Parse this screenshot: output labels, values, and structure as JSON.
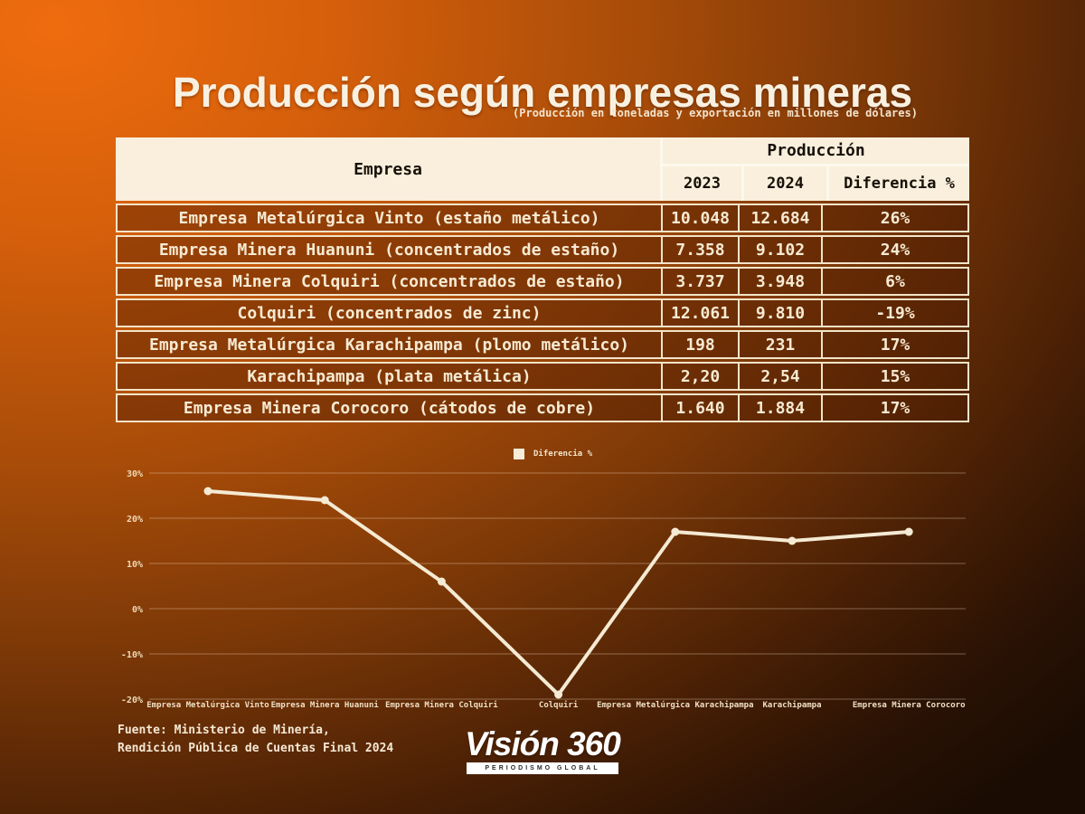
{
  "title": "Producción según empresas mineras",
  "subtitle": "(Producción en toneladas y exportación en millones de dólares)",
  "table": {
    "col_empresa": "Empresa",
    "col_produccion": "Producción",
    "col_2023": "2023",
    "col_2024": "2024",
    "col_diferencia": "Diferencia %",
    "rows": [
      {
        "empresa": "Empresa Metalúrgica Vinto  (estaño metálico)",
        "y2023": "10.048",
        "y2024": "12.684",
        "dif": "26%"
      },
      {
        "empresa": "Empresa Minera Huanuni (concentrados de estaño)",
        "y2023": "7.358",
        "y2024": "9.102",
        "dif": "24%"
      },
      {
        "empresa": "Empresa Minera Colquiri  (concentrados de estaño)",
        "y2023": "3.737",
        "y2024": "3.948",
        "dif": "6%"
      },
      {
        "empresa": "Colquiri (concentrados de zinc)",
        "y2023": "12.061",
        "y2024": "9.810",
        "dif": "-19%"
      },
      {
        "empresa": "Empresa Metalúrgica Karachipampa (plomo metálico)",
        "y2023": "198",
        "y2024": "231",
        "dif": "17%"
      },
      {
        "empresa": "Karachipampa (plata metálica)",
        "y2023": "2,20",
        "y2024": "2,54",
        "dif": "15%"
      },
      {
        "empresa": "Empresa Minera Corocoro (cátodos de cobre)",
        "y2023": "1.640",
        "y2024": "1.884",
        "dif": "17%"
      }
    ]
  },
  "chart_data": {
    "type": "line",
    "title": "",
    "legend": "Diferencia %",
    "legend_position": "top-center",
    "categories": [
      "Empresa Metalúrgica Vinto",
      "Empresa Minera Huanuni",
      "Empresa Minera Colquiri",
      "Colquiri",
      "Empresa Metalúrgica Karachipampa",
      "Karachipampa",
      "Empresa Minera  Corocoro"
    ],
    "values": [
      26,
      24,
      6,
      -19,
      17,
      15,
      17
    ],
    "ylim": [
      -20,
      30
    ],
    "ytick_values": [
      30,
      20,
      10,
      0,
      -10,
      -20
    ],
    "ytick_labels": [
      "30%",
      "20%",
      "10%",
      "0%",
      "-10%",
      "-20%"
    ],
    "grid": true,
    "line_color": "#f5ead3",
    "grid_color": "rgba(255,235,210,0.35)",
    "tick_color": "#eed9b4"
  },
  "footer": {
    "source_line1": "Fuente: Ministerio de Minería,",
    "source_line2": "Rendición Pública de Cuentas Final 2024",
    "logo_text": "Visión 360",
    "logo_subtext": "PERIODISMO GLOBAL"
  },
  "colors": {
    "background_bright": "#ef6c0e",
    "background_dark": "#1a0c03",
    "header_bg": "#f9efdc",
    "header_text": "#171008",
    "row_border": "#f2e4c8",
    "row_text": "#f7ead2",
    "title_text": "#f8f1e2"
  }
}
